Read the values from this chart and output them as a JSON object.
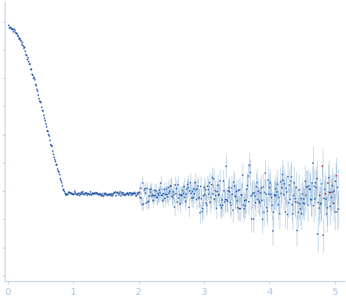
{
  "xlim": [
    -0.05,
    5.15
  ],
  "xticks": [
    0,
    1,
    2,
    3,
    4,
    5
  ],
  "background_color": "#ffffff",
  "axis_color": "#aac4e0",
  "tick_color": "#aac4e0",
  "label_color": "#aac4e0",
  "data_color": "#1b4fa8",
  "error_color": "#9bbcd8",
  "outlier_color": "#cc0000",
  "I0": 0.88,
  "Rg": 2.1,
  "I_flat": 0.29,
  "noise_low": 0.004,
  "noise_high_base": 0.018,
  "noise_high_slope": 0.012,
  "noise_transition": 2.0,
  "error_scale": 1.2,
  "n_points": 480,
  "q_min": 0.01,
  "q_max": 5.05,
  "seed": 7,
  "ylim": [
    -0.02,
    0.97
  ],
  "outlier_threshold": 4.75
}
